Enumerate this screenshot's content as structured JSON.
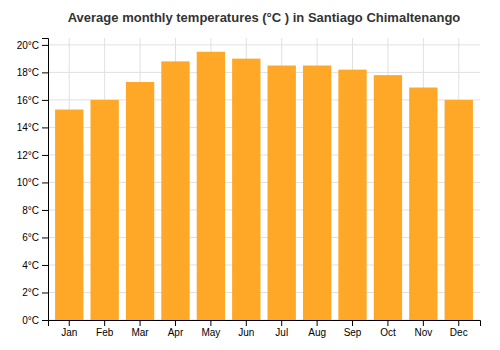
{
  "chart_data": {
    "type": "bar",
    "title": "Average monthly temperatures (°C ) in Santiago Chimaltenango",
    "categories": [
      "Jan",
      "Feb",
      "Mar",
      "Apr",
      "May",
      "Jun",
      "Jul",
      "Aug",
      "Sep",
      "Oct",
      "Nov",
      "Dec"
    ],
    "values": [
      15.3,
      16.0,
      17.3,
      18.8,
      19.5,
      19.0,
      18.5,
      18.5,
      18.2,
      17.8,
      16.9,
      16.0
    ],
    "color": "#FFA726",
    "ylim": [
      0,
      20.5
    ],
    "yticks": [
      {
        "value": 0,
        "label": "0°C"
      },
      {
        "value": 2,
        "label": "2°C"
      },
      {
        "value": 4,
        "label": "4°C"
      },
      {
        "value": 6,
        "label": "6°C"
      },
      {
        "value": 8,
        "label": "8°C"
      },
      {
        "value": 10,
        "label": "10°C"
      },
      {
        "value": 12,
        "label": "12°C"
      },
      {
        "value": 14,
        "label": "14°C"
      },
      {
        "value": 16,
        "label": "16°C"
      },
      {
        "value": 18,
        "label": "18°C"
      },
      {
        "value": 20,
        "label": "20°C"
      }
    ],
    "grid": true
  }
}
